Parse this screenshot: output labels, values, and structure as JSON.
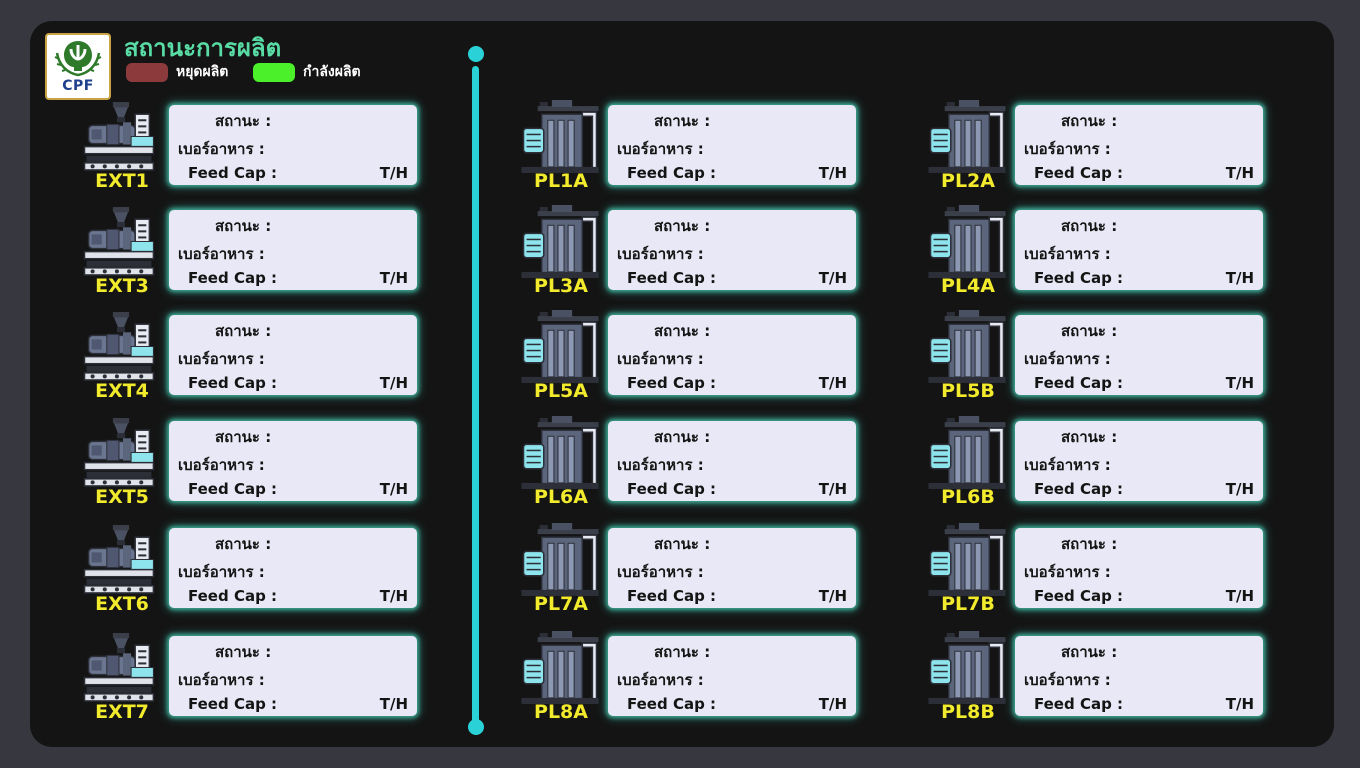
{
  "header": {
    "title": "สถานะการผลิต",
    "logo_text": "CPF"
  },
  "legend": [
    {
      "label": "หยุดผลิต",
      "color": "#8c3a3c"
    },
    {
      "label": "กำลังผลิต",
      "color": "#4cf02a"
    }
  ],
  "card_labels": {
    "status": "สถานะ :",
    "feed_number": "เบอร์อาหาร :",
    "feed_cap": "Feed Cap :",
    "unit": "T/H"
  },
  "machines": [
    {
      "name": "EXT1",
      "type": "extruder-icon"
    },
    {
      "name": "EXT3",
      "type": "extruder-icon"
    },
    {
      "name": "EXT4",
      "type": "extruder-icon"
    },
    {
      "name": "EXT5",
      "type": "extruder-icon"
    },
    {
      "name": "EXT6",
      "type": "extruder-icon"
    },
    {
      "name": "EXT7",
      "type": "extruder-icon"
    },
    {
      "name": "PL1A",
      "type": "pellet-mill-icon"
    },
    {
      "name": "PL2A",
      "type": "pellet-mill-icon"
    },
    {
      "name": "PL3A",
      "type": "pellet-mill-icon"
    },
    {
      "name": "PL4A",
      "type": "pellet-mill-icon"
    },
    {
      "name": "PL5A",
      "type": "pellet-mill-icon"
    },
    {
      "name": "PL5B",
      "type": "pellet-mill-icon"
    },
    {
      "name": "PL6A",
      "type": "pellet-mill-icon"
    },
    {
      "name": "PL6B",
      "type": "pellet-mill-icon"
    },
    {
      "name": "PL7A",
      "type": "pellet-mill-icon"
    },
    {
      "name": "PL7B",
      "type": "pellet-mill-icon"
    },
    {
      "name": "PL8A",
      "type": "pellet-mill-icon"
    },
    {
      "name": "PL8B",
      "type": "pellet-mill-icon"
    }
  ]
}
